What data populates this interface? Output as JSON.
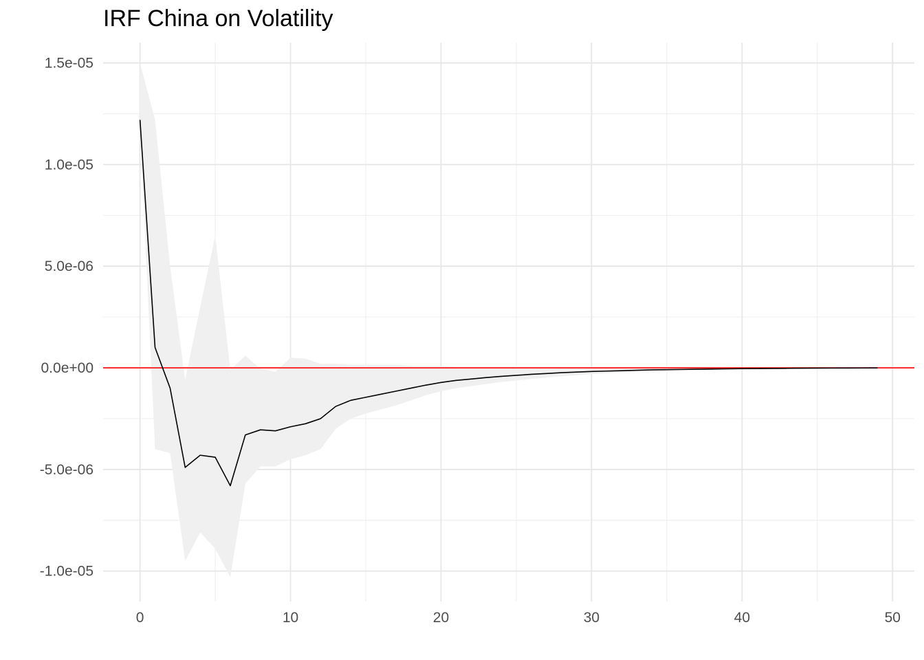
{
  "chart_data": {
    "type": "line",
    "title": "IRF China on Volatility",
    "xlabel": "",
    "ylabel": "",
    "xlim": [
      -2.45,
      51.45
    ],
    "ylim": [
      -1.15e-05,
      1.6e-05
    ],
    "x_ticks": [
      {
        "value": 0,
        "label": "0"
      },
      {
        "value": 10,
        "label": "10"
      },
      {
        "value": 20,
        "label": "20"
      },
      {
        "value": 30,
        "label": "30"
      },
      {
        "value": 40,
        "label": "40"
      },
      {
        "value": 50,
        "label": "50"
      }
    ],
    "x_minor": [
      5,
      15,
      25,
      35,
      45
    ],
    "y_ticks": [
      {
        "value": 1.5e-05,
        "label": "1.5e-05"
      },
      {
        "value": 1e-05,
        "label": "1.0e-05"
      },
      {
        "value": 5e-06,
        "label": "5.0e-06"
      },
      {
        "value": 0.0,
        "label": "0.0e+00"
      },
      {
        "value": -5e-06,
        "label": "-5.0e-06"
      },
      {
        "value": -1e-05,
        "label": "-1.0e-05"
      }
    ],
    "y_minor": [
      1.25e-05,
      7.5e-06,
      2.5e-06,
      -2.5e-06,
      -7.5e-06
    ],
    "grid": true,
    "zero_line_color": "#ff0000",
    "line_color": "#000000",
    "band_color": "#f0f0f0",
    "series": [
      {
        "x": [
          0,
          1,
          2,
          3,
          4,
          5,
          6,
          7,
          8,
          9,
          10,
          11,
          12,
          13,
          14,
          15,
          16,
          17,
          18,
          19,
          20,
          21,
          22,
          23,
          24,
          25,
          26,
          27,
          28,
          29,
          30,
          31,
          32,
          33,
          34,
          35,
          36,
          37,
          38,
          39,
          40,
          41,
          42,
          43,
          44,
          45,
          46,
          47,
          48,
          49
        ],
        "irf": [
          1.22e-05,
          1e-06,
          -1e-06,
          -4.9e-06,
          -4.3e-06,
          -4.4e-06,
          -5.8e-06,
          -3.3e-06,
          -3.05e-06,
          -3.1e-06,
          -2.9e-06,
          -2.75e-06,
          -2.5e-06,
          -1.9e-06,
          -1.6e-06,
          -1.45e-06,
          -1.3e-06,
          -1.15e-06,
          -1e-06,
          -8.5e-07,
          -7.2e-07,
          -6.2e-07,
          -5.5e-07,
          -4.8e-07,
          -4.2e-07,
          -3.7e-07,
          -3.2e-07,
          -2.8e-07,
          -2.4e-07,
          -2.1e-07,
          -1.8e-07,
          -1.6e-07,
          -1.4e-07,
          -1.2e-07,
          -1e-07,
          -9e-08,
          -8e-08,
          -7e-08,
          -6e-08,
          -5e-08,
          -4e-08,
          -3.5e-08,
          -3e-08,
          -2.5e-08,
          -2e-08,
          -1.5e-08,
          -1.2e-08,
          -1e-08,
          -8e-09,
          -6e-09
        ],
        "upper": [
          1.5e-05,
          1.22e-05,
          5e-06,
          -6e-07,
          3e-06,
          6.5e-06,
          -1e-07,
          6e-07,
          -5e-08,
          -2e-07,
          5e-07,
          4.5e-07,
          2e-07,
          2e-07,
          1.5e-07,
          1.5e-07,
          1.5e-07,
          1.5e-07,
          1e-07,
          1e-07,
          1e-07,
          5e-08,
          5e-08,
          5e-08,
          5e-08,
          5e-08,
          5e-08,
          5e-08,
          4e-08,
          3e-08,
          3e-08,
          3e-08,
          2e-08,
          2e-08,
          2e-08,
          2e-08,
          2e-08,
          2e-08,
          1.5e-08,
          1e-08,
          1e-08,
          1e-08,
          1e-08,
          1e-08,
          1e-08,
          1e-08,
          5e-09,
          5e-09,
          5e-09,
          5e-09
        ],
        "lower": [
          1.2e-05,
          -4e-06,
          -4.2e-06,
          -9.5e-06,
          -8.1e-06,
          -8.9e-06,
          -1.03e-05,
          -5.7e-06,
          -4.85e-06,
          -4.85e-06,
          -4.5e-06,
          -4.3e-06,
          -4e-06,
          -3e-06,
          -2.5e-06,
          -2.25e-06,
          -2.05e-06,
          -1.85e-06,
          -1.6e-06,
          -1.35e-06,
          -1.15e-06,
          -1e-06,
          -9e-07,
          -8e-07,
          -7e-07,
          -6.2e-07,
          -5.5e-07,
          -4.8e-07,
          -4.2e-07,
          -3.6e-07,
          -3.1e-07,
          -2.7e-07,
          -2.3e-07,
          -2e-07,
          -1.7e-07,
          -1.5e-07,
          -1.3e-07,
          -1.1e-07,
          -9e-08,
          -8e-08,
          -7e-08,
          -6e-08,
          -5e-08,
          -4e-08,
          -3.5e-08,
          -3e-08,
          -2.5e-08,
          -2e-08,
          -1.5e-08,
          -1.2e-08
        ]
      }
    ]
  }
}
